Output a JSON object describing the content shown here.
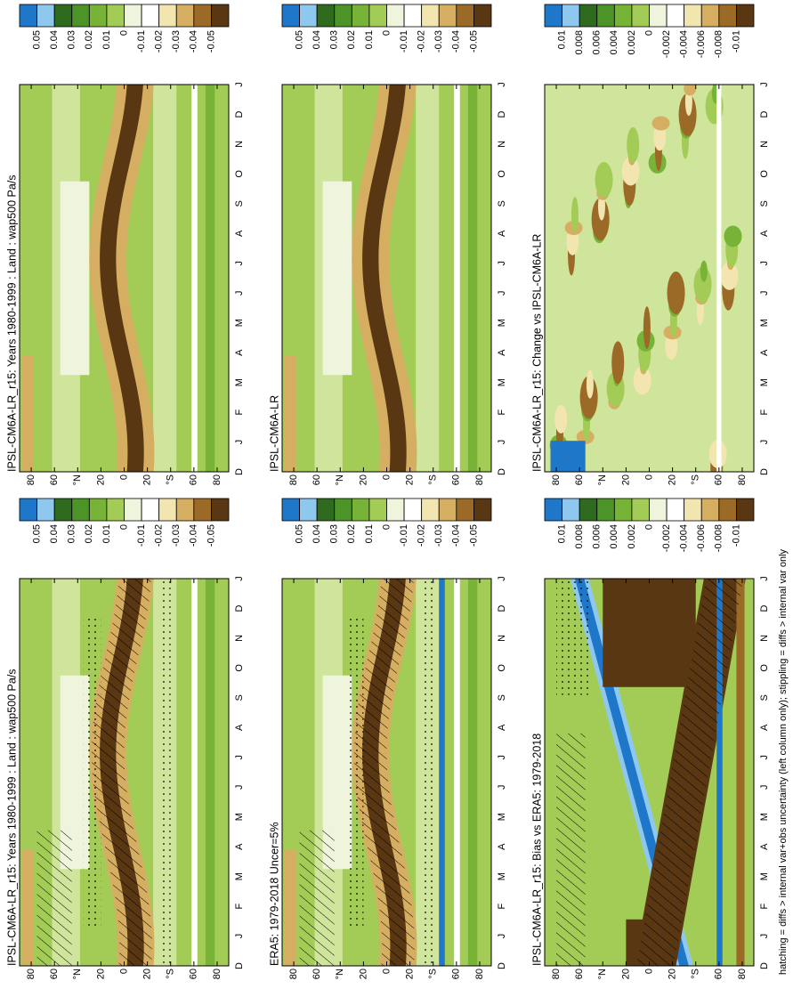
{
  "chart_data": [
    {
      "type": "contour",
      "title": "IPSL-CM6A-LR_r15: Years 1980-1999 : Land : wap500 Pa/s",
      "categories": [
        "D",
        "J",
        "F",
        "M",
        "A",
        "M",
        "J",
        "J",
        "A",
        "S",
        "O",
        "N",
        "D",
        "J"
      ],
      "ylim": [
        -90,
        90
      ],
      "yticks": [
        80,
        60,
        {
          "value": 40,
          "label": "°N"
        },
        20,
        0,
        {
          "value": -20,
          "label": "20"
        },
        {
          "value": -40,
          "label": "°S"
        },
        {
          "value": -60,
          "label": "60"
        },
        {
          "value": -80,
          "label": "80"
        }
      ],
      "hatching": true,
      "colorbar": {
        "levels": [
          0.05,
          0.04,
          0.03,
          0.02,
          0.01,
          0,
          -0.01,
          -0.02,
          -0.03,
          -0.04,
          -0.05
        ],
        "colors": [
          "#1f77c9",
          "#8fc8ef",
          "#2e6b1f",
          "#4c9328",
          "#77b336",
          "#a3cc57",
          "#eef5dc",
          "#ffffff",
          "#f2e5b0",
          "#d6ae62",
          "#9c6a27",
          "#5a3713"
        ]
      }
    },
    {
      "type": "contour",
      "title": "IPSL-CM6A-LR_r15: Years 1980-1999 : Land : wap500 Pa/s",
      "categories": [
        "D",
        "J",
        "F",
        "M",
        "A",
        "M",
        "J",
        "J",
        "A",
        "S",
        "O",
        "N",
        "D",
        "J"
      ],
      "ylim": [
        -90,
        90
      ],
      "yticks": [
        80,
        60,
        {
          "value": 40,
          "label": "°N"
        },
        20,
        0,
        {
          "value": -20,
          "label": "20"
        },
        {
          "value": -40,
          "label": "°S"
        },
        {
          "value": -60,
          "label": "60"
        },
        {
          "value": -80,
          "label": "80"
        }
      ],
      "hatching": false,
      "colorbar": {
        "levels": [
          0.05,
          0.04,
          0.03,
          0.02,
          0.01,
          0,
          -0.01,
          -0.02,
          -0.03,
          -0.04,
          -0.05
        ],
        "colors": [
          "#1f77c9",
          "#8fc8ef",
          "#2e6b1f",
          "#4c9328",
          "#77b336",
          "#a3cc57",
          "#eef5dc",
          "#ffffff",
          "#f2e5b0",
          "#d6ae62",
          "#9c6a27",
          "#5a3713"
        ]
      }
    },
    {
      "type": "contour",
      "title": "ERA5: 1979-2018 Uncer=5%",
      "categories": [
        "D",
        "J",
        "F",
        "M",
        "A",
        "M",
        "J",
        "J",
        "A",
        "S",
        "O",
        "N",
        "D",
        "J"
      ],
      "ylim": [
        -90,
        90
      ],
      "yticks": [
        80,
        60,
        {
          "value": 40,
          "label": "°N"
        },
        20,
        0,
        {
          "value": -20,
          "label": "20"
        },
        {
          "value": -40,
          "label": "°S"
        },
        {
          "value": -60,
          "label": "60"
        },
        {
          "value": -80,
          "label": "80"
        }
      ],
      "hatching": true,
      "colorbar": {
        "levels": [
          0.05,
          0.04,
          0.03,
          0.02,
          0.01,
          0,
          -0.01,
          -0.02,
          -0.03,
          -0.04,
          -0.05
        ],
        "colors": [
          "#1f77c9",
          "#8fc8ef",
          "#2e6b1f",
          "#4c9328",
          "#77b336",
          "#a3cc57",
          "#eef5dc",
          "#ffffff",
          "#f2e5b0",
          "#d6ae62",
          "#9c6a27",
          "#5a3713"
        ]
      }
    },
    {
      "type": "contour",
      "title": "IPSL-CM6A-LR",
      "categories": [
        "D",
        "J",
        "F",
        "M",
        "A",
        "M",
        "J",
        "J",
        "A",
        "S",
        "O",
        "N",
        "D",
        "J"
      ],
      "ylim": [
        -90,
        90
      ],
      "yticks": [
        80,
        60,
        {
          "value": 40,
          "label": "°N"
        },
        20,
        0,
        {
          "value": -20,
          "label": "20"
        },
        {
          "value": -40,
          "label": "°S"
        },
        {
          "value": -60,
          "label": "60"
        },
        {
          "value": -80,
          "label": "80"
        }
      ],
      "hatching": false,
      "colorbar": {
        "levels": [
          0.05,
          0.04,
          0.03,
          0.02,
          0.01,
          0,
          -0.01,
          -0.02,
          -0.03,
          -0.04,
          -0.05
        ],
        "colors": [
          "#1f77c9",
          "#8fc8ef",
          "#2e6b1f",
          "#4c9328",
          "#77b336",
          "#a3cc57",
          "#eef5dc",
          "#ffffff",
          "#f2e5b0",
          "#d6ae62",
          "#9c6a27",
          "#5a3713"
        ]
      }
    },
    {
      "type": "contour",
      "title": "IPSL-CM6A-LR_r15: Bias vs ERA5: 1979-2018",
      "categories": [
        "D",
        "J",
        "F",
        "M",
        "A",
        "M",
        "J",
        "J",
        "A",
        "S",
        "O",
        "N",
        "D",
        "J"
      ],
      "ylim": [
        -90,
        90
      ],
      "yticks": [
        80,
        60,
        {
          "value": 40,
          "label": "°N"
        },
        20,
        0,
        {
          "value": -20,
          "label": "20"
        },
        {
          "value": -40,
          "label": "°S"
        },
        {
          "value": -60,
          "label": "60"
        },
        {
          "value": -80,
          "label": "80"
        }
      ],
      "hatching": true,
      "colorbar": {
        "levels": [
          0.01,
          0.008,
          0.006,
          0.004,
          0.002,
          0,
          -0.002,
          -0.004,
          -0.006,
          -0.008,
          -0.01
        ],
        "colors": [
          "#1f77c9",
          "#8fc8ef",
          "#2e6b1f",
          "#4c9328",
          "#77b336",
          "#a3cc57",
          "#eef5dc",
          "#ffffff",
          "#f2e5b0",
          "#d6ae62",
          "#9c6a27",
          "#5a3713"
        ]
      }
    },
    {
      "type": "contour",
      "title": "IPSL-CM6A-LR_r15: Change vs IPSL-CM6A-LR",
      "categories": [
        "D",
        "J",
        "F",
        "M",
        "A",
        "M",
        "J",
        "J",
        "A",
        "S",
        "O",
        "N",
        "D",
        "J"
      ],
      "ylim": [
        -90,
        90
      ],
      "yticks": [
        80,
        60,
        {
          "value": 40,
          "label": "°N"
        },
        20,
        0,
        {
          "value": -20,
          "label": "20"
        },
        {
          "value": -40,
          "label": "°S"
        },
        {
          "value": -60,
          "label": "60"
        },
        {
          "value": -80,
          "label": "80"
        }
      ],
      "hatching": false,
      "colorbar": {
        "levels": [
          0.01,
          0.008,
          0.006,
          0.004,
          0.002,
          0,
          -0.002,
          -0.004,
          -0.006,
          -0.008,
          -0.01
        ],
        "colors": [
          "#1f77c9",
          "#8fc8ef",
          "#2e6b1f",
          "#4c9328",
          "#77b336",
          "#a3cc57",
          "#eef5dc",
          "#ffffff",
          "#f2e5b0",
          "#d6ae62",
          "#9c6a27",
          "#5a3713"
        ]
      }
    }
  ],
  "footnote": "hatching = diffs > internal var+obs uncertainty (left column only); stippling = diffs > internal var only"
}
